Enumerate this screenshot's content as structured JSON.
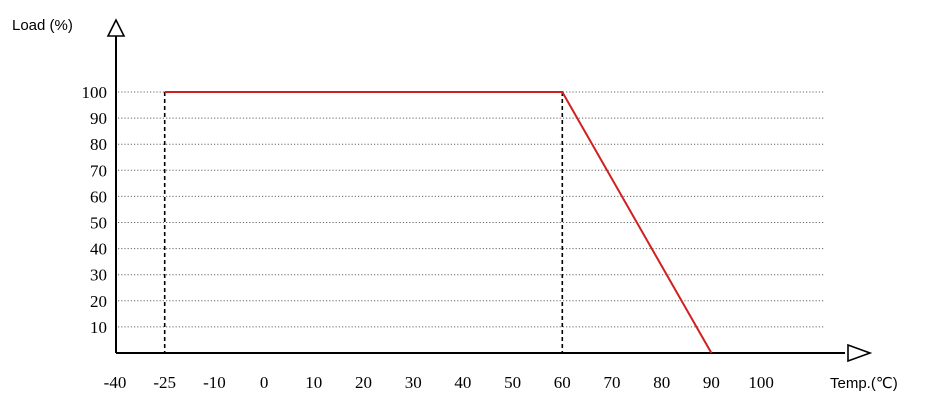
{
  "chart_data": {
    "type": "line",
    "title": "",
    "xlabel": "Temp.(℃)",
    "ylabel": "Load (%)",
    "x_ticks": [
      "-40",
      "-25",
      "-10",
      "0",
      "10",
      "20",
      "30",
      "40",
      "50",
      "60",
      "70",
      "80",
      "90",
      "100"
    ],
    "y_ticks": [
      "10",
      "20",
      "30",
      "40",
      "50",
      "60",
      "70",
      "80",
      "90",
      "100"
    ],
    "xlim": [
      -40,
      100
    ],
    "ylim": [
      0,
      100
    ],
    "grid": "horizontal-dotted",
    "series": [
      {
        "color": "#d02020",
        "points": [
          {
            "x": -25,
            "y": 100
          },
          {
            "x": 60,
            "y": 100
          },
          {
            "x": 90,
            "y": 0
          }
        ]
      }
    ],
    "reference_lines": [
      {
        "x": -25,
        "style": "dashed",
        "color": "#000000"
      },
      {
        "x": 60,
        "style": "dashed",
        "color": "#000000"
      }
    ]
  }
}
